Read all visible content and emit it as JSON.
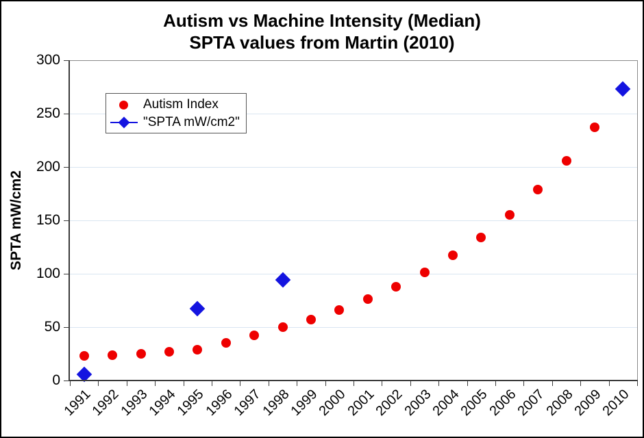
{
  "title": {
    "line1": "Autism vs Machine Intensity (Median)",
    "line2": "SPTA values from Martin (2010)"
  },
  "legend": {
    "items": [
      {
        "label": "Autism Index",
        "marker": "circle-icon",
        "color": "#ee0000"
      },
      {
        "label": "\"SPTA mW/cm2\"",
        "marker": "diamond-line-icon",
        "color": "#1414e0"
      }
    ]
  },
  "chart_data": {
    "type": "scatter",
    "title": "Autism vs Machine Intensity (Median)",
    "subtitle": "SPTA values from Martin (2010)",
    "xlabel": "",
    "ylabel": "SPTA mW/cm2",
    "ylim": [
      0,
      300
    ],
    "ytick_step": 50,
    "grid": "horizontal",
    "gridline_color": "#d9e5f1",
    "axis_color": "#3a3a3a",
    "frame_color": "#8a8a8a",
    "legend_position": "top-left-inside",
    "categories": [
      "1991",
      "1992",
      "1993",
      "1994",
      "1995",
      "1996",
      "1997",
      "1998",
      "1999",
      "2000",
      "2001",
      "2002",
      "2003",
      "2004",
      "2005",
      "2006",
      "2007",
      "2008",
      "2009",
      "2010"
    ],
    "series": [
      {
        "name": "Autism Index",
        "marker": "circle",
        "color": "#ee0000",
        "points": [
          [
            "1991",
            23
          ],
          [
            "1992",
            24
          ],
          [
            "1993",
            25
          ],
          [
            "1994",
            27
          ],
          [
            "1995",
            29
          ],
          [
            "1996",
            35
          ],
          [
            "1997",
            42
          ],
          [
            "1998",
            50
          ],
          [
            "1999",
            57
          ],
          [
            "2000",
            66
          ],
          [
            "2001",
            76
          ],
          [
            "2002",
            88
          ],
          [
            "2003",
            101
          ],
          [
            "2004",
            117
          ],
          [
            "2005",
            134
          ],
          [
            "2006",
            155
          ],
          [
            "2007",
            179
          ],
          [
            "2008",
            206
          ],
          [
            "2009",
            237
          ]
        ]
      },
      {
        "name": "\"SPTA mW/cm2\"",
        "marker": "diamond",
        "color": "#1414e0",
        "points": [
          [
            "1991",
            6
          ],
          [
            "1995",
            67
          ],
          [
            "1998",
            94
          ],
          [
            "2010",
            273
          ]
        ]
      }
    ]
  }
}
